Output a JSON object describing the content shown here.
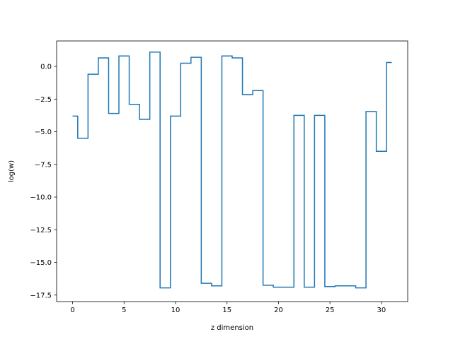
{
  "chart_data": {
    "type": "line",
    "step": "mid",
    "title": "",
    "xlabel": "z dimension",
    "ylabel": "log(w)",
    "xlim": [
      -1.55,
      32.55
    ],
    "ylim": [
      -18.0,
      1.95
    ],
    "xticks": [
      0,
      5,
      10,
      15,
      20,
      25,
      30
    ],
    "xtick_labels": [
      "0",
      "5",
      "10",
      "15",
      "20",
      "25",
      "30"
    ],
    "yticks": [
      -17.5,
      -15.0,
      -12.5,
      -10.0,
      -7.5,
      -5.0,
      -2.5,
      0.0
    ],
    "ytick_labels": [
      "−17.5",
      "−15.0",
      "−12.5",
      "−10.0",
      "−7.5",
      "−5.0",
      "−2.5",
      "0.0"
    ],
    "grid": false,
    "line_color": "#1f77b4",
    "series": [
      {
        "x": [
          0,
          1,
          2,
          3,
          4,
          5,
          6,
          7,
          8,
          9,
          10,
          11,
          12,
          13,
          14,
          15,
          16,
          17,
          18,
          19,
          20,
          21,
          22,
          23,
          24,
          25,
          26,
          27,
          28,
          29,
          30,
          31
        ],
        "y": [
          -3.8,
          -5.5,
          -0.6,
          0.65,
          -3.6,
          0.8,
          -2.9,
          -4.05,
          1.1,
          -16.95,
          -3.8,
          0.25,
          0.7,
          -16.6,
          -16.8,
          0.8,
          0.65,
          -2.15,
          -1.85,
          -16.75,
          -16.9,
          -16.9,
          -3.75,
          -16.9,
          -3.75,
          -16.85,
          -16.8,
          -16.8,
          -16.95,
          -3.45,
          -6.5,
          0.3
        ]
      }
    ]
  }
}
